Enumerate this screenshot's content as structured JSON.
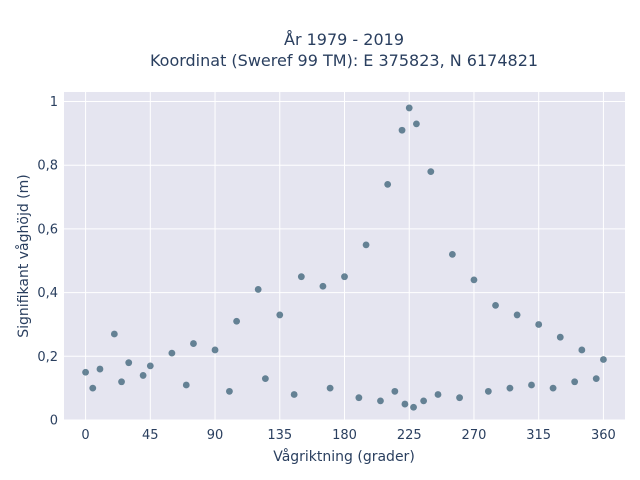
{
  "chart_data": {
    "type": "scatter",
    "title_lines": [
      "År 1979 - 2019",
      "Koordinat (Sweref 99 TM): E 375823, N 6174821"
    ],
    "xlabel": "Vågriktning (grader)",
    "ylabel": "Signifikant våghöjd (m)",
    "xlim": [
      -15,
      375
    ],
    "ylim": [
      0,
      1.03
    ],
    "x_ticks": [
      0,
      45,
      90,
      135,
      180,
      225,
      270,
      315,
      360
    ],
    "x_tick_labels": [
      "0",
      "45",
      "90",
      "135",
      "180",
      "225",
      "270",
      "315",
      "360"
    ],
    "y_ticks": [
      0,
      0.2,
      0.4,
      0.6,
      0.8,
      1.0
    ],
    "y_tick_labels": [
      "0",
      "0,2",
      "0,4",
      "0,6",
      "0,8",
      "1"
    ],
    "grid": true,
    "legend": "none",
    "marker_color": "#325a70",
    "plot_background": "#e5e5f0",
    "series": [
      {
        "x": [
          0,
          10,
          20,
          30,
          45,
          60,
          75,
          90,
          105,
          120,
          135,
          150,
          165,
          180,
          195,
          210,
          220,
          225,
          230,
          240,
          255,
          270,
          285,
          300,
          315,
          330,
          345,
          360,
          5,
          25,
          40,
          70,
          100,
          125,
          145,
          170,
          190,
          205,
          215,
          222,
          228,
          235,
          245,
          260,
          280,
          295,
          310,
          325,
          340,
          355
        ],
        "y": [
          0.15,
          0.16,
          0.27,
          0.18,
          0.17,
          0.21,
          0.24,
          0.22,
          0.31,
          0.41,
          0.33,
          0.45,
          0.42,
          0.45,
          0.55,
          0.74,
          0.91,
          0.98,
          0.93,
          0.78,
          0.52,
          0.44,
          0.36,
          0.33,
          0.3,
          0.26,
          0.22,
          0.19,
          0.1,
          0.12,
          0.14,
          0.11,
          0.09,
          0.13,
          0.08,
          0.1,
          0.07,
          0.06,
          0.09,
          0.05,
          0.04,
          0.06,
          0.08,
          0.07,
          0.09,
          0.1,
          0.11,
          0.1,
          0.12,
          0.13
        ]
      }
    ]
  }
}
